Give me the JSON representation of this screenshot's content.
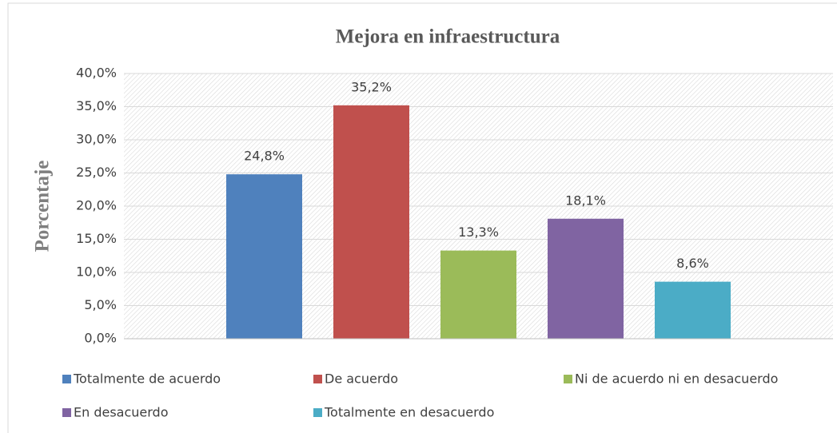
{
  "chart_data": {
    "type": "bar",
    "title": "Mejora en infraestructura",
    "y_label": "Porcentaje",
    "series": [
      {
        "name": "Totalmente de acuerdo",
        "color": "#4f81bd",
        "values": [
          24.8
        ],
        "value_labels": [
          "24,8%"
        ]
      },
      {
        "name": "De acuerdo",
        "color": "#c0504d",
        "values": [
          35.2
        ],
        "value_labels": [
          "35,2%"
        ]
      },
      {
        "name": "Ni de acuerdo ni en desacuerdo",
        "color": "#9bbb59",
        "values": [
          13.3
        ],
        "value_labels": [
          "13,3%"
        ]
      },
      {
        "name": "En desacuerdo",
        "color": "#8064a2",
        "values": [
          18.1
        ],
        "value_labels": [
          "18,1%"
        ]
      },
      {
        "name": "Totalmente en desacuerdo",
        "color": "#4bacc6",
        "values": [
          8.6
        ],
        "value_labels": [
          "8,6%"
        ]
      }
    ],
    "ylim": [
      0,
      40
    ],
    "yticks": [
      {
        "value": 0,
        "label": "0,0%"
      },
      {
        "value": 5,
        "label": "5,0%"
      },
      {
        "value": 10,
        "label": "10,0%"
      },
      {
        "value": 15,
        "label": "15,0%"
      },
      {
        "value": 20,
        "label": "20,0%"
      },
      {
        "value": 25,
        "label": "25,0%"
      },
      {
        "value": 30,
        "label": "30,0%"
      },
      {
        "value": 35,
        "label": "35,0%"
      },
      {
        "value": 40,
        "label": "40,0%"
      }
    ],
    "grid": true
  }
}
